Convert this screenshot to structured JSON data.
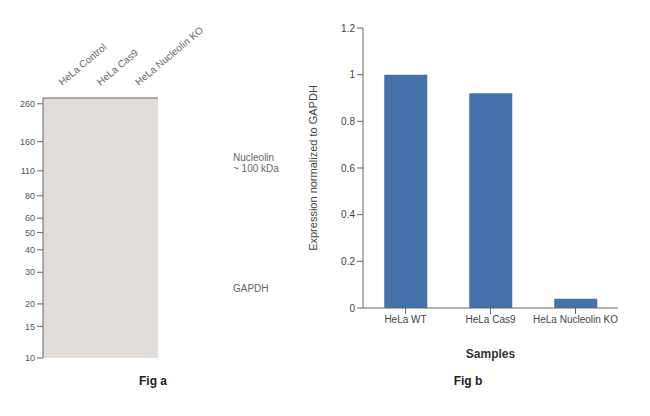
{
  "chart_data": [
    {
      "type": "blot",
      "title": "Fig a",
      "categories": [
        "HeLa Control",
        "HeLa Cas9",
        "HeLa Nucleolin KO"
      ],
      "log": "y",
      "ylim": [
        10,
        280
      ],
      "yticks": [
        260,
        160,
        110,
        80,
        60,
        50,
        40,
        30,
        20,
        15,
        10
      ],
      "annotations": [
        "Nucleolin\n~ 100 kDa",
        "GAPDH"
      ]
    },
    {
      "type": "bar",
      "title": "Fig b",
      "categories": [
        "HeLa WT",
        "HeLa Cas9",
        "HeLa Nucleolin KO"
      ],
      "values": [
        1.0,
        0.92,
        0.04
      ],
      "color": "#4472aa",
      "ylim": [
        0,
        1.2
      ],
      "yticks": [
        0,
        0.2,
        0.4,
        0.6,
        0.8,
        1,
        1.2
      ],
      "xlabel": "Samples",
      "ylabel": "Expression normalized to GAPDH",
      "grid": false
    }
  ]
}
